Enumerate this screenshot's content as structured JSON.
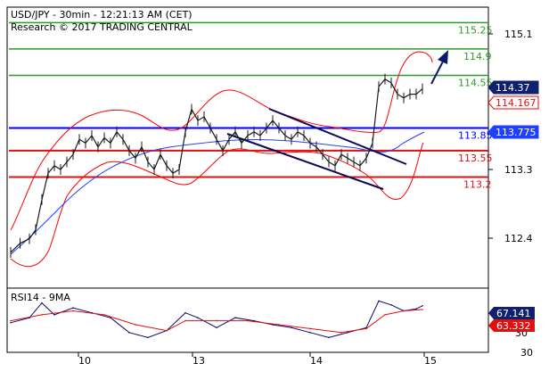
{
  "header": {
    "title": "USD/JPY - 30min - 12:21:13 AM (CET)",
    "subtitle": "Research © 2017 TRADING CENTRAL"
  },
  "rsi_label": "RSI14 - 9MA",
  "colors": {
    "resistance": "#2e9a2e",
    "support": "#e01010",
    "pivot": "#0000ff",
    "price": "#1a1a1a",
    "bollinger": "#ff0000",
    "moving_average": "#2040ff",
    "channel": "#0a0a5a",
    "arrow": "#0a1a6a",
    "last_price_tag": "#10206a",
    "rsi_ma_tag": "#e01010"
  },
  "chart_data": {
    "type": "line",
    "x_tick_labels": [
      "10",
      "13",
      "14",
      "15"
    ],
    "y_tick_labels": [
      "115.1",
      "113.3",
      "112.4"
    ],
    "ylim": [
      111.8,
      115.3
    ],
    "levels": [
      {
        "value": 115.25,
        "label": "115.25",
        "kind": "resistance"
      },
      {
        "value": 114.9,
        "label": "114.9",
        "kind": "resistance"
      },
      {
        "value": 114.55,
        "label": "114.55",
        "kind": "resistance"
      },
      {
        "value": 113.85,
        "label": "113.85",
        "kind": "pivot"
      },
      {
        "value": 113.55,
        "label": "113.55",
        "kind": "support"
      },
      {
        "value": 113.2,
        "label": "113.2",
        "kind": "support"
      }
    ],
    "price_tags": [
      {
        "value": 114.37,
        "label": "114.37",
        "kind": "last_price"
      },
      {
        "value": 114.167,
        "label": "114.167",
        "kind": "bollinger"
      },
      {
        "value": 113.775,
        "label": "113.775",
        "kind": "moving_average"
      }
    ],
    "series": [
      {
        "values": [
          {
            "x": 0,
            "y": 112.2
          },
          {
            "x": 3,
            "y": 112.32
          },
          {
            "x": 6,
            "y": 112.38
          },
          {
            "x": 8,
            "y": 112.5
          },
          {
            "x": 10,
            "y": 112.9
          },
          {
            "x": 12,
            "y": 113.25
          },
          {
            "x": 14,
            "y": 113.35
          },
          {
            "x": 16,
            "y": 113.3
          },
          {
            "x": 18,
            "y": 113.4
          },
          {
            "x": 20,
            "y": 113.5
          },
          {
            "x": 22,
            "y": 113.7
          },
          {
            "x": 24,
            "y": 113.65
          },
          {
            "x": 26,
            "y": 113.75
          },
          {
            "x": 28,
            "y": 113.6
          },
          {
            "x": 30,
            "y": 113.72
          },
          {
            "x": 32,
            "y": 113.65
          },
          {
            "x": 34,
            "y": 113.8
          },
          {
            "x": 36,
            "y": 113.7
          },
          {
            "x": 38,
            "y": 113.55
          },
          {
            "x": 40,
            "y": 113.45
          },
          {
            "x": 42,
            "y": 113.6
          },
          {
            "x": 44,
            "y": 113.4
          },
          {
            "x": 46,
            "y": 113.3
          },
          {
            "x": 48,
            "y": 113.5
          },
          {
            "x": 50,
            "y": 113.35
          },
          {
            "x": 52,
            "y": 113.25
          },
          {
            "x": 54,
            "y": 113.3
          },
          {
            "x": 56,
            "y": 113.8
          },
          {
            "x": 58,
            "y": 114.1
          },
          {
            "x": 60,
            "y": 113.95
          },
          {
            "x": 62,
            "y": 114.0
          },
          {
            "x": 64,
            "y": 113.85
          },
          {
            "x": 66,
            "y": 113.7
          },
          {
            "x": 68,
            "y": 113.55
          },
          {
            "x": 70,
            "y": 113.7
          },
          {
            "x": 72,
            "y": 113.8
          },
          {
            "x": 74,
            "y": 113.65
          },
          {
            "x": 76,
            "y": 113.75
          },
          {
            "x": 78,
            "y": 113.8
          },
          {
            "x": 80,
            "y": 113.75
          },
          {
            "x": 82,
            "y": 113.85
          },
          {
            "x": 84,
            "y": 113.95
          },
          {
            "x": 86,
            "y": 113.85
          },
          {
            "x": 88,
            "y": 113.75
          },
          {
            "x": 90,
            "y": 113.7
          },
          {
            "x": 92,
            "y": 113.8
          },
          {
            "x": 94,
            "y": 113.75
          },
          {
            "x": 96,
            "y": 113.65
          },
          {
            "x": 98,
            "y": 113.6
          },
          {
            "x": 100,
            "y": 113.5
          },
          {
            "x": 102,
            "y": 113.4
          },
          {
            "x": 104,
            "y": 113.35
          },
          {
            "x": 106,
            "y": 113.5
          },
          {
            "x": 108,
            "y": 113.45
          },
          {
            "x": 110,
            "y": 113.4
          },
          {
            "x": 112,
            "y": 113.35
          },
          {
            "x": 114,
            "y": 113.45
          },
          {
            "x": 116,
            "y": 113.65
          },
          {
            "x": 118,
            "y": 114.4
          },
          {
            "x": 120,
            "y": 114.5
          },
          {
            "x": 122,
            "y": 114.45
          },
          {
            "x": 124,
            "y": 114.3
          },
          {
            "x": 126,
            "y": 114.25
          },
          {
            "x": 128,
            "y": 114.3
          },
          {
            "x": 130,
            "y": 114.3
          },
          {
            "x": 132,
            "y": 114.37
          }
        ]
      },
      {
        "name": "RSI14",
        "values": [
          {
            "x": 0,
            "y": 50
          },
          {
            "x": 6,
            "y": 55
          },
          {
            "x": 10,
            "y": 70
          },
          {
            "x": 14,
            "y": 58
          },
          {
            "x": 20,
            "y": 65
          },
          {
            "x": 26,
            "y": 60
          },
          {
            "x": 32,
            "y": 55
          },
          {
            "x": 38,
            "y": 40
          },
          {
            "x": 44,
            "y": 35
          },
          {
            "x": 50,
            "y": 42
          },
          {
            "x": 56,
            "y": 60
          },
          {
            "x": 60,
            "y": 55
          },
          {
            "x": 66,
            "y": 45
          },
          {
            "x": 72,
            "y": 55
          },
          {
            "x": 78,
            "y": 52
          },
          {
            "x": 84,
            "y": 48
          },
          {
            "x": 90,
            "y": 45
          },
          {
            "x": 96,
            "y": 40
          },
          {
            "x": 102,
            "y": 35
          },
          {
            "x": 108,
            "y": 40
          },
          {
            "x": 114,
            "y": 45
          },
          {
            "x": 118,
            "y": 72
          },
          {
            "x": 122,
            "y": 68
          },
          {
            "x": 126,
            "y": 62
          },
          {
            "x": 130,
            "y": 64
          },
          {
            "x": 132,
            "y": 67.141
          }
        ]
      },
      {
        "name": "9MA",
        "values": [
          {
            "x": 0,
            "y": 52
          },
          {
            "x": 10,
            "y": 58
          },
          {
            "x": 20,
            "y": 62
          },
          {
            "x": 30,
            "y": 58
          },
          {
            "x": 40,
            "y": 48
          },
          {
            "x": 50,
            "y": 42
          },
          {
            "x": 56,
            "y": 52
          },
          {
            "x": 66,
            "y": 52
          },
          {
            "x": 76,
            "y": 52
          },
          {
            "x": 86,
            "y": 48
          },
          {
            "x": 96,
            "y": 44
          },
          {
            "x": 106,
            "y": 40
          },
          {
            "x": 114,
            "y": 44
          },
          {
            "x": 120,
            "y": 58
          },
          {
            "x": 126,
            "y": 62
          },
          {
            "x": 132,
            "y": 63.332
          }
        ]
      }
    ],
    "rsi": {
      "ylim": [
        20,
        85
      ],
      "tick_labels": [
        "30"
      ],
      "last_rsi": 67.141,
      "last_rsi_label": "67.141",
      "last_ma": 63.332,
      "last_ma_label": "63.332"
    }
  }
}
